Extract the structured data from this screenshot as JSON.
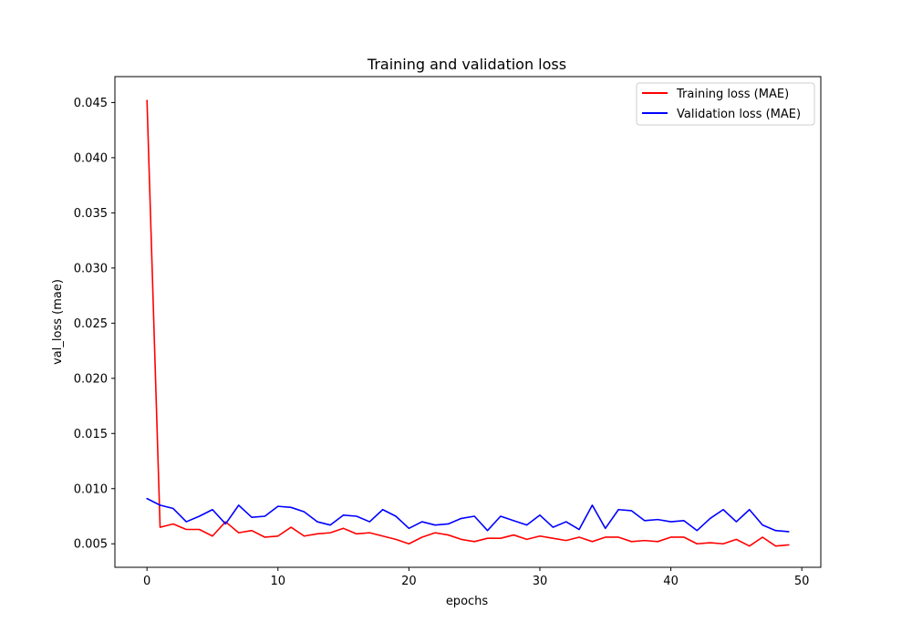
{
  "chart_data": {
    "type": "line",
    "title": "Training and validation loss",
    "xlabel": "epochs",
    "ylabel": "val_loss (mae)",
    "xlim": [
      -2.45,
      51.45
    ],
    "ylim": [
      0.00287,
      0.04735
    ],
    "xticks": [
      0,
      10,
      20,
      30,
      40,
      50
    ],
    "xtick_labels": [
      "0",
      "10",
      "20",
      "30",
      "40",
      "50"
    ],
    "yticks": [
      0.005,
      0.01,
      0.015,
      0.02,
      0.025,
      0.03,
      0.035,
      0.04,
      0.045
    ],
    "ytick_labels": [
      "0.005",
      "0.010",
      "0.015",
      "0.020",
      "0.025",
      "0.030",
      "0.035",
      "0.040",
      "0.045"
    ],
    "grid": false,
    "legend_position": "top-right",
    "x": [
      0,
      1,
      2,
      3,
      4,
      5,
      6,
      7,
      8,
      9,
      10,
      11,
      12,
      13,
      14,
      15,
      16,
      17,
      18,
      19,
      20,
      21,
      22,
      23,
      24,
      25,
      26,
      27,
      28,
      29,
      30,
      31,
      32,
      33,
      34,
      35,
      36,
      37,
      38,
      39,
      40,
      41,
      42,
      43,
      44,
      45,
      46,
      47,
      48,
      49
    ],
    "series": [
      {
        "name": "Training loss (MAE)",
        "color": "#ff0000",
        "values": [
          0.0452,
          0.0065,
          0.0068,
          0.0063,
          0.0063,
          0.0057,
          0.007,
          0.006,
          0.0062,
          0.0056,
          0.0057,
          0.0065,
          0.0057,
          0.0059,
          0.006,
          0.0064,
          0.0059,
          0.006,
          0.0057,
          0.0054,
          0.005,
          0.0056,
          0.006,
          0.0058,
          0.0054,
          0.0052,
          0.0055,
          0.0055,
          0.0058,
          0.0054,
          0.0057,
          0.0055,
          0.0053,
          0.0056,
          0.0052,
          0.0056,
          0.0056,
          0.0052,
          0.0053,
          0.0052,
          0.0056,
          0.0056,
          0.005,
          0.0051,
          0.005,
          0.0054,
          0.0048,
          0.0056,
          0.0048,
          0.0049
        ]
      },
      {
        "name": "Validation loss (MAE)",
        "color": "#0000ff",
        "values": [
          0.0091,
          0.0085,
          0.0082,
          0.007,
          0.0075,
          0.0081,
          0.0068,
          0.0085,
          0.0074,
          0.0075,
          0.0084,
          0.0083,
          0.0079,
          0.007,
          0.0067,
          0.0076,
          0.0075,
          0.007,
          0.0081,
          0.0075,
          0.0064,
          0.007,
          0.0067,
          0.0068,
          0.0073,
          0.0075,
          0.0062,
          0.0075,
          0.0071,
          0.0067,
          0.0076,
          0.0065,
          0.007,
          0.0063,
          0.0085,
          0.0064,
          0.0081,
          0.008,
          0.0071,
          0.0072,
          0.007,
          0.0071,
          0.0062,
          0.0073,
          0.0081,
          0.007,
          0.0081,
          0.0067,
          0.0062,
          0.0061
        ]
      }
    ]
  }
}
